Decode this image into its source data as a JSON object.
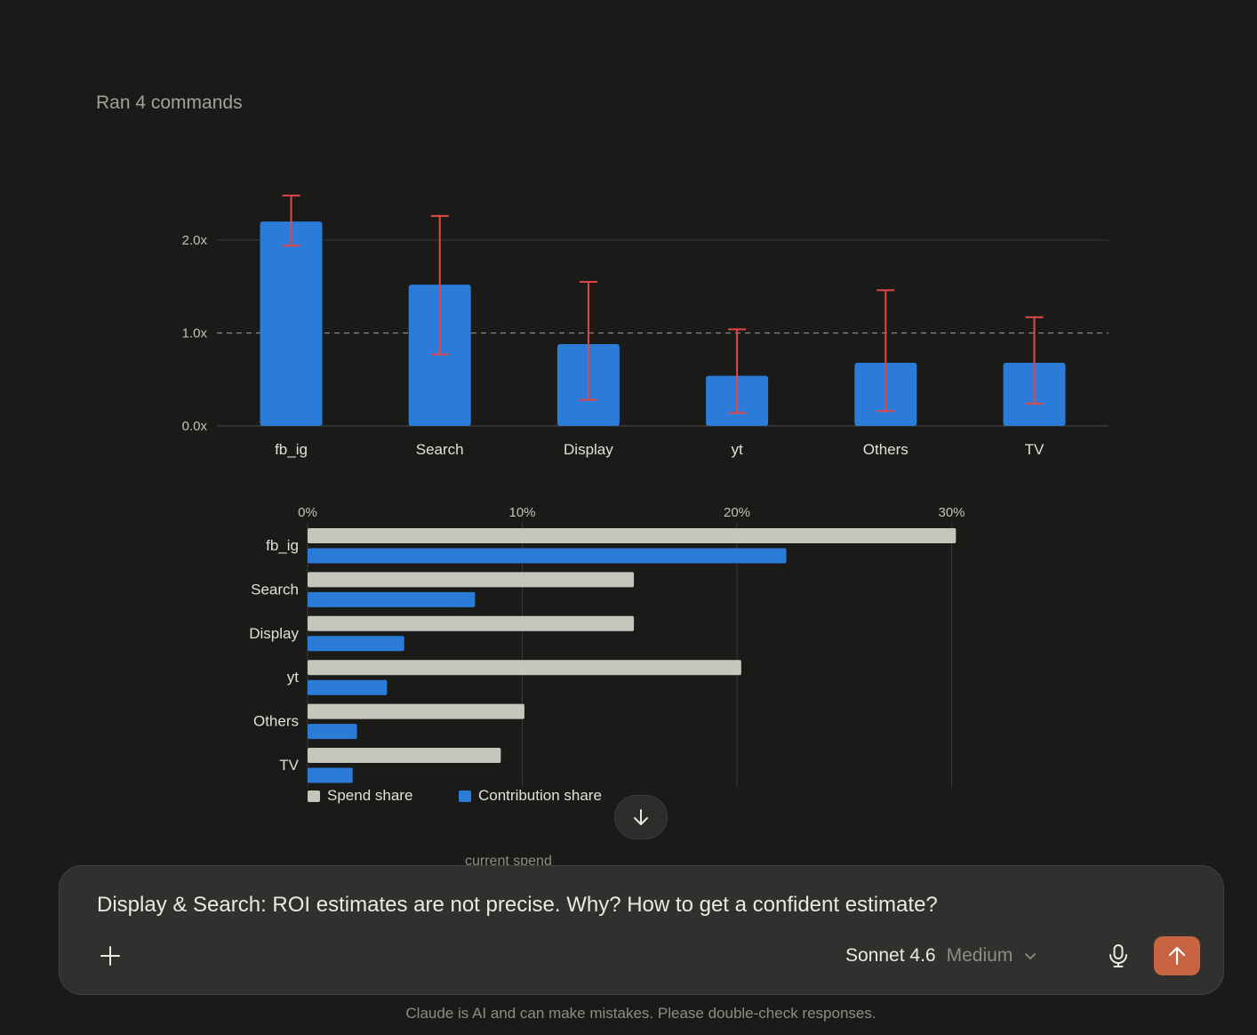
{
  "transcript": {
    "ran_commands_label": "Ran 4 commands",
    "peek_text": "current spend"
  },
  "colors": {
    "background": "#1a1a19",
    "bar_blue": "#2b7bd9",
    "error_bar_red": "#e04848",
    "spend_grey": "#c7c6bd",
    "send_button": "#c96442"
  },
  "chart_data": [
    {
      "type": "bar",
      "categories": [
        "fb_ig",
        "Search",
        "Display",
        "yt",
        "Others",
        "TV"
      ],
      "values": [
        2.2,
        1.52,
        0.88,
        0.54,
        0.68,
        0.68
      ],
      "error_low": [
        1.94,
        0.77,
        0.28,
        0.14,
        0.16,
        0.24
      ],
      "error_high": [
        2.48,
        2.26,
        1.55,
        1.04,
        1.46,
        1.17
      ],
      "ylim": [
        0,
        2.5
      ],
      "yticks": [
        "0.0x",
        "1.0x",
        "2.0x"
      ],
      "ytick_values": [
        0,
        1,
        2
      ],
      "reference_line": 1.0,
      "grid": true
    },
    {
      "type": "bar",
      "orientation": "horizontal",
      "categories": [
        "fb_ig",
        "Search",
        "Display",
        "yt",
        "Others",
        "TV"
      ],
      "series": [
        {
          "name": "Spend share",
          "values": [
            30.2,
            15.2,
            15.2,
            20.2,
            10.1,
            9.0
          ]
        },
        {
          "name": "Contribution share",
          "values": [
            22.3,
            7.8,
            4.5,
            3.7,
            2.3,
            2.1
          ]
        }
      ],
      "xlim": [
        0,
        30
      ],
      "xticks": [
        "0%",
        "10%",
        "20%",
        "30%"
      ],
      "xtick_values": [
        0,
        10,
        20,
        30
      ],
      "legend": "bottom-left",
      "grid": true
    }
  ],
  "composer": {
    "text": "Display & Search: ROI estimates are not precise. Why? How to get a confident estimate?",
    "model_name": "Sonnet 4.6",
    "effort": "Medium"
  },
  "footer": {
    "disclaimer": "Claude is AI and can make mistakes. Please double-check responses."
  }
}
